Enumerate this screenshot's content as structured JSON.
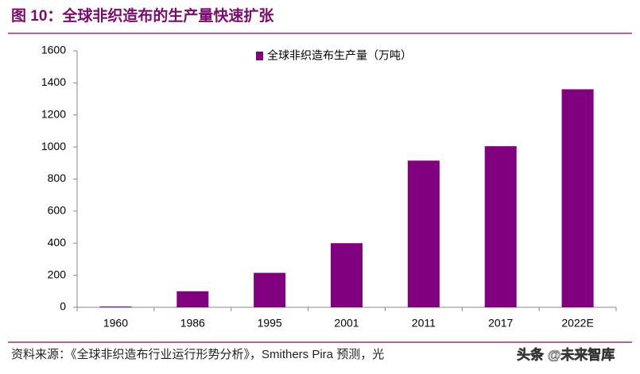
{
  "title": "图 10：全球非织造布的生产量快速扩张",
  "chart_data": {
    "type": "bar",
    "categories": [
      "1960",
      "1986",
      "1995",
      "2001",
      "2011",
      "2017",
      "2022E"
    ],
    "series": [
      {
        "name": "全球非织造布生产量（万吨）",
        "color": "#800080",
        "values": [
          5,
          100,
          215,
          400,
          915,
          1005,
          1360
        ]
      }
    ],
    "ylim": [
      0,
      1600
    ],
    "yticks": [
      0,
      200,
      400,
      600,
      800,
      1000,
      1200,
      1400,
      1600
    ],
    "grid": false,
    "legend": "top"
  },
  "source": "资料来源：《全球非织造布行业运行形势分析》，Smithers Pira 预测，光",
  "watermark": "头条 @未来智库"
}
